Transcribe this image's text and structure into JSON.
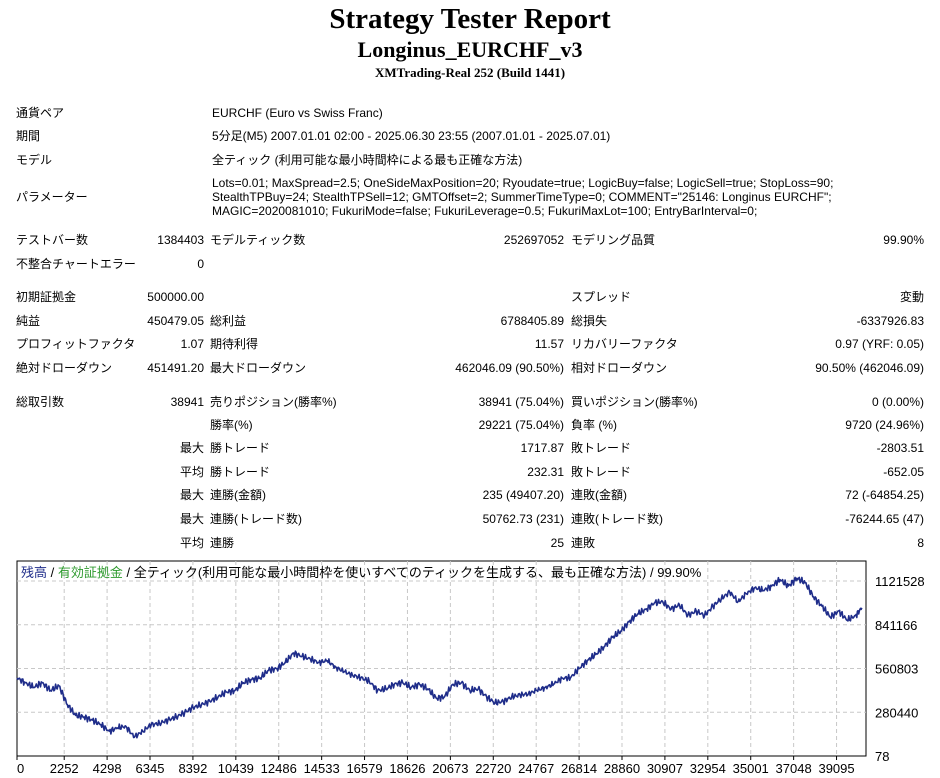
{
  "header": {
    "title": "Strategy Tester Report",
    "ea_name": "Longinus_EURCHF_v3",
    "server": "XMTrading-Real 252 (Build 1441)"
  },
  "info": {
    "symbol_label": "通貨ペア",
    "symbol_value": "EURCHF (Euro vs Swiss Franc)",
    "period_label": "期間",
    "period_value": "5分足(M5) 2007.01.01 02:00 - 2025.06.30 23:55 (2007.01.01 - 2025.07.01)",
    "model_label": "モデル",
    "model_value": "全ティック (利用可能な最小時間枠による最も正確な方法)",
    "params_label": "パラメーター",
    "params_line1": "Lots=0.01; MaxSpread=2.5; OneSideMaxPosition=20; Ryoudate=true; LogicBuy=false; LogicSell=true; StopLoss=90;",
    "params_line2": "StealthTPBuy=24; StealthTPSell=12; GMTOffset=2; SummerTimeType=0; COMMENT=\"25146: Longinus EURCHF\";",
    "params_line3": "MAGIC=2020081010; FukuriMode=false; FukuriLeverage=0.5; FukuriMaxLot=100; EntryBarInterval=0;"
  },
  "stats": {
    "bars_label": "テストバー数",
    "bars_value": "1384403",
    "ticks_label": "モデルティック数",
    "ticks_value": "252697052",
    "quality_label": "モデリング品質",
    "quality_value": "99.90%",
    "mismatch_label": "不整合チャートエラー",
    "mismatch_value": "0",
    "deposit_label": "初期証拠金",
    "deposit_value": "500000.00",
    "spread_label": "スプレッド",
    "spread_value": "変動",
    "net_label": "純益",
    "net_value": "450479.05",
    "gross_profit_label": "総利益",
    "gross_profit_value": "6788405.89",
    "gross_loss_label": "総損失",
    "gross_loss_value": "-6337926.83",
    "pf_label": "プロフィットファクタ",
    "pf_value": "1.07",
    "payoff_label": "期待利得",
    "payoff_value": "11.57",
    "recovery_label": "リカバリーファクタ",
    "recovery_value": "0.97 (YRF: 0.05)",
    "abs_dd_label": "絶対ドローダウン",
    "abs_dd_value": "451491.20",
    "max_dd_label": "最大ドローダウン",
    "max_dd_value": "462046.09 (90.50%)",
    "rel_dd_label": "相対ドローダウン",
    "rel_dd_value": "90.50% (462046.09)",
    "trades_label": "総取引数",
    "trades_value": "38941",
    "short_label": "売りポジション(勝率%)",
    "short_value": "38941 (75.04%)",
    "long_label": "買いポジション(勝率%)",
    "long_value": "0 (0.00%)",
    "win_label": "勝率(%)",
    "win_value": "29221 (75.04%)",
    "loss_label": "負率 (%)",
    "loss_value": "9720 (24.96%)",
    "max_word": "最大",
    "avg_word": "平均",
    "max_win_label": "勝トレード",
    "max_win_value": "1717.87",
    "max_loss_label": "敗トレード",
    "max_loss_value": "-2803.51",
    "avg_win_label": "勝トレード",
    "avg_win_value": "232.31",
    "avg_loss_label": "敗トレード",
    "avg_loss_value": "-652.05",
    "cons_win_money_label": "連勝(金額)",
    "cons_win_money_value": "235 (49407.20)",
    "cons_loss_money_label": "連敗(金額)",
    "cons_loss_money_value": "72 (-64854.25)",
    "cons_win_count_label": "連勝(トレード数)",
    "cons_win_count_value": "50762.73 (231)",
    "cons_loss_count_label": "連敗(トレード数)",
    "cons_loss_count_value": "-76244.65 (47)",
    "avg_cons_win_label": "連勝",
    "avg_cons_win_value": "25",
    "avg_cons_loss_label": "連敗",
    "avg_cons_loss_value": "8"
  },
  "legend": {
    "balance": "残高",
    "sep1": " / ",
    "equity": "有効証拠金",
    "rest": " / 全ティック(利用可能な最小時間枠を使いすべてのティックを生成する、最も正確な方法) / 99.90%"
  },
  "colors": {
    "balance_line": "#1f2d8a",
    "equity_text": "#2e9a2e",
    "balance_text": "#1f2d8a",
    "grid": "#c8c8c8"
  },
  "chart_data": {
    "type": "line",
    "xlabel": "",
    "ylabel": "",
    "xlim": [
      0,
      40500
    ],
    "ylim": [
      78,
      1250000
    ],
    "x_ticks": [
      0,
      2252,
      4298,
      6345,
      8392,
      10439,
      12486,
      14533,
      16579,
      18626,
      20673,
      22720,
      24767,
      26814,
      28860,
      30907,
      32954,
      35001,
      37048,
      39095
    ],
    "y_ticks": [
      78,
      280440,
      560803,
      841166,
      1121528
    ],
    "grid": true,
    "series": [
      {
        "name": "残高",
        "x": [
          0,
          400,
          800,
          1200,
          1600,
          2000,
          2400,
          2800,
          3200,
          3600,
          4000,
          4400,
          4800,
          5200,
          5600,
          6000,
          6400,
          6800,
          7200,
          7600,
          8000,
          8400,
          8800,
          9200,
          9600,
          10000,
          10400,
          10800,
          11200,
          11600,
          12000,
          12400,
          12800,
          13200,
          13600,
          14000,
          14400,
          14800,
          15200,
          15600,
          16000,
          16400,
          16800,
          17200,
          17600,
          18000,
          18400,
          18800,
          19200,
          19600,
          20000,
          20400,
          20800,
          21200,
          21600,
          22000,
          22400,
          22800,
          23200,
          23600,
          24000,
          24400,
          24800,
          25200,
          25600,
          26000,
          26400,
          26800,
          27200,
          27600,
          28000,
          28400,
          28800,
          29200,
          29600,
          30000,
          30400,
          30800,
          31200,
          31600,
          32000,
          32400,
          32800,
          33200,
          33600,
          34000,
          34400,
          34800,
          35200,
          35600,
          36000,
          36400,
          36800,
          37200,
          37600,
          38000,
          38400,
          38800,
          39200,
          39600,
          40000,
          40300
        ],
        "y": [
          500000,
          470000,
          440000,
          470000,
          420000,
          450000,
          330000,
          260000,
          250000,
          230000,
          200000,
          160000,
          180000,
          190000,
          120000,
          160000,
          200000,
          210000,
          230000,
          250000,
          280000,
          310000,
          330000,
          350000,
          380000,
          410000,
          420000,
          470000,
          490000,
          500000,
          550000,
          560000,
          600000,
          660000,
          640000,
          620000,
          600000,
          610000,
          570000,
          540000,
          520000,
          500000,
          480000,
          420000,
          430000,
          460000,
          470000,
          440000,
          460000,
          430000,
          370000,
          380000,
          460000,
          470000,
          420000,
          430000,
          380000,
          340000,
          350000,
          380000,
          390000,
          400000,
          420000,
          440000,
          460000,
          500000,
          500000,
          560000,
          610000,
          650000,
          700000,
          760000,
          800000,
          860000,
          910000,
          940000,
          980000,
          990000,
          940000,
          970000,
          900000,
          930000,
          900000,
          960000,
          1010000,
          1050000,
          990000,
          1040000,
          1080000,
          1060000,
          1090000,
          1130000,
          1090000,
          1140000,
          1110000,
          1020000,
          960000,
          890000,
          930000,
          870000,
          900000,
          950000
        ]
      }
    ]
  }
}
